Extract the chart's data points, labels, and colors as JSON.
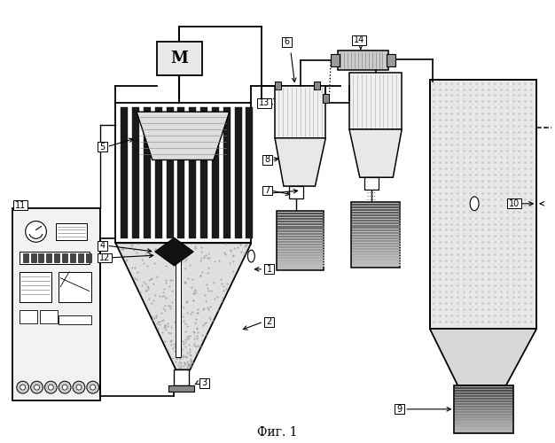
{
  "title": "Фиг. 1",
  "bg_color": "#ffffff",
  "figsize": [
    6.26,
    5.0
  ],
  "dpi": 100
}
